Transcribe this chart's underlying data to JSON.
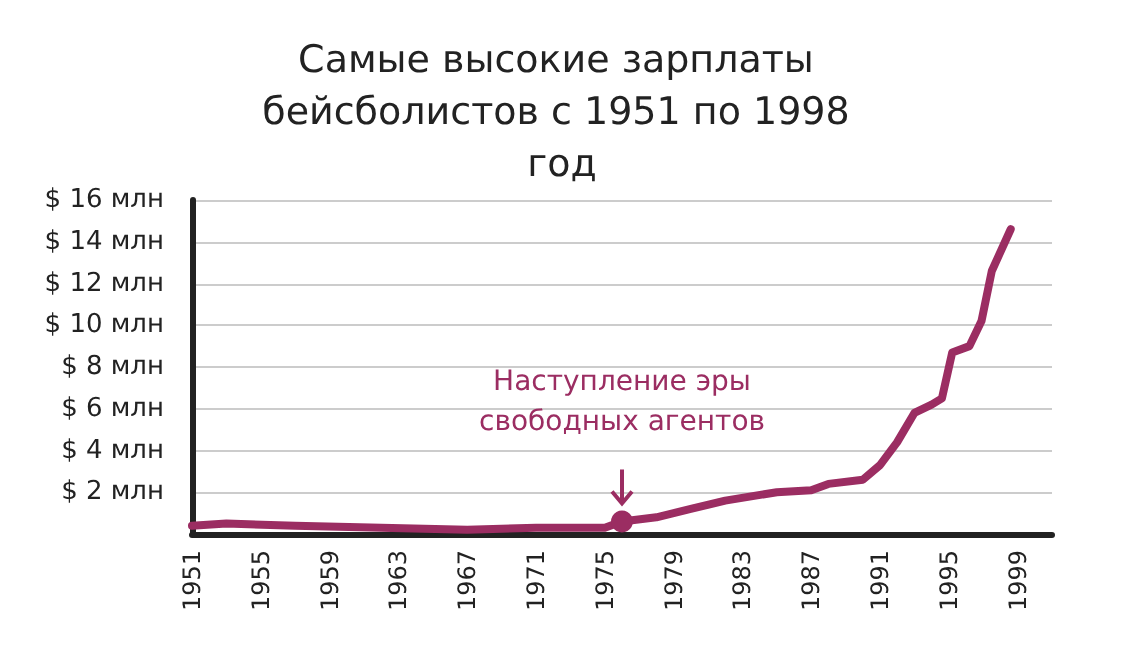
{
  "chart_data": {
    "type": "line",
    "title": "Самые высокие зарплаты бейсболистов с 1951 по 1998 год",
    "x": [
      1951,
      1953,
      1957,
      1962,
      1967,
      1971,
      1975,
      1976,
      1978,
      1980,
      1982,
      1985,
      1987,
      1988,
      1990,
      1991,
      1992,
      1993,
      1994,
      1994.6,
      1995.2,
      1996.2,
      1996.9,
      1997.5,
      1998.6
    ],
    "series": [
      {
        "color": "#9b2d62",
        "values": [
          0.4,
          0.5,
          0.4,
          0.3,
          0.2,
          0.3,
          0.3,
          0.6,
          0.8,
          1.2,
          1.6,
          2.0,
          2.1,
          2.4,
          2.6,
          3.3,
          4.4,
          5.8,
          6.2,
          6.5,
          8.7,
          9.0,
          10.2,
          12.6,
          14.6
        ]
      }
    ],
    "xlim": [
      1951,
      2001
    ],
    "xticks": [
      1951,
      1955,
      1959,
      1963,
      1967,
      1971,
      1975,
      1979,
      1983,
      1987,
      1991,
      1995,
      1999
    ],
    "ylim": [
      0,
      16
    ],
    "yticks": [
      {
        "value": 2,
        "label": "$ 2 млн"
      },
      {
        "value": 4,
        "label": "$ 4 млн"
      },
      {
        "value": 6,
        "label": "$ 6 млн"
      },
      {
        "value": 8,
        "label": "$ 8 млн"
      },
      {
        "value": 10,
        "label": "$ 10 млн"
      },
      {
        "value": 12,
        "label": "$ 12 млн"
      },
      {
        "value": 14,
        "label": "$ 14 млн"
      },
      {
        "value": 16,
        "label": "$ 16 млн"
      }
    ],
    "grid": "y",
    "marker": "none",
    "annotations": [
      {
        "text": "Наступление эры\nсвободных агентов",
        "x": 1976,
        "y": 0.6
      }
    ]
  }
}
